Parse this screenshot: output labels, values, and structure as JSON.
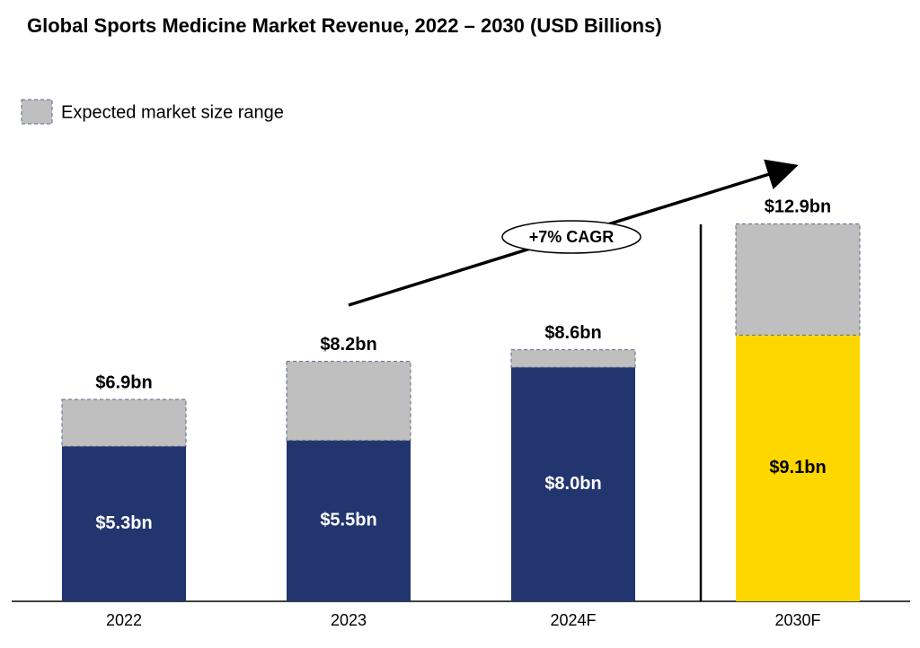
{
  "chart_data": {
    "type": "bar",
    "title": "Global Sports Medicine Market Revenue, 2022 – 2030 (USD Billions)",
    "categories": [
      "2022",
      "2023",
      "2024F",
      "2030F"
    ],
    "series": [
      {
        "values": [
          5.3,
          5.5,
          8.0,
          9.1
        ],
        "value_labels": [
          "$5.3bn",
          "$5.5bn",
          "$8.0bn",
          "$9.1bn"
        ],
        "colors": [
          "#22356f",
          "#22356f",
          "#22356f",
          "#ffd700"
        ]
      },
      {
        "name": "Expected market size range",
        "color": "#bfbfbf",
        "values": [
          1.6,
          2.7,
          0.6,
          3.8
        ]
      }
    ],
    "totals": [
      6.9,
      8.2,
      8.6,
      12.9
    ],
    "total_labels": [
      "$6.9bn",
      "$8.2bn",
      "$8.6bn",
      "$12.9bn"
    ],
    "annotation": "+7% CAGR",
    "ylim": [
      0,
      14
    ]
  }
}
